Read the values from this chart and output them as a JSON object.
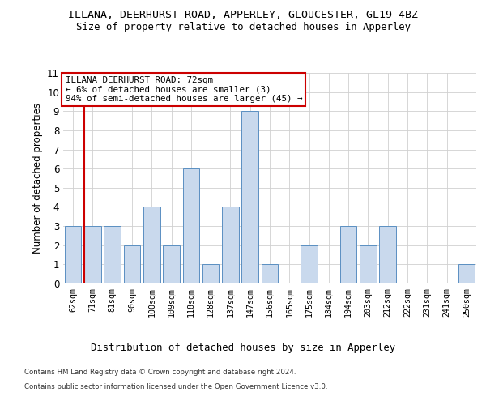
{
  "title_line1": "ILLANA, DEERHURST ROAD, APPERLEY, GLOUCESTER, GL19 4BZ",
  "title_line2": "Size of property relative to detached houses in Apperley",
  "xlabel": "Distribution of detached houses by size in Apperley",
  "ylabel": "Number of detached properties",
  "footer_line1": "Contains HM Land Registry data © Crown copyright and database right 2024.",
  "footer_line2": "Contains public sector information licensed under the Open Government Licence v3.0.",
  "categories": [
    "62sqm",
    "71sqm",
    "81sqm",
    "90sqm",
    "100sqm",
    "109sqm",
    "118sqm",
    "128sqm",
    "137sqm",
    "147sqm",
    "156sqm",
    "165sqm",
    "175sqm",
    "184sqm",
    "194sqm",
    "203sqm",
    "212sqm",
    "222sqm",
    "231sqm",
    "241sqm",
    "250sqm"
  ],
  "values": [
    3,
    3,
    3,
    2,
    4,
    2,
    6,
    1,
    4,
    9,
    1,
    0,
    2,
    0,
    3,
    2,
    3,
    0,
    0,
    0,
    1
  ],
  "bar_color": "#c9d9ed",
  "bar_edge_color": "#5a8fc2",
  "highlight_index": 1,
  "highlight_line_color": "#cc0000",
  "annotation_text": "ILLANA DEERHURST ROAD: 72sqm\n← 6% of detached houses are smaller (3)\n94% of semi-detached houses are larger (45) →",
  "annotation_box_color": "#ffffff",
  "annotation_box_edge_color": "#cc0000",
  "ylim": [
    0,
    11
  ],
  "yticks": [
    0,
    1,
    2,
    3,
    4,
    5,
    6,
    7,
    8,
    9,
    10,
    11
  ],
  "grid_color": "#d0d0d0",
  "background_color": "#ffffff"
}
